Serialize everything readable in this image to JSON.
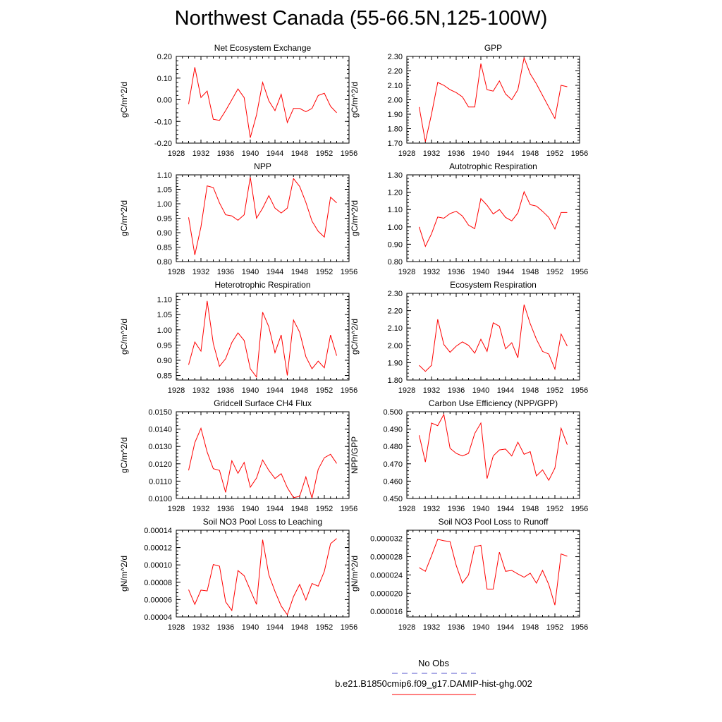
{
  "figure": {
    "title": "Northwest Canada (55-66.5N,125-100W)",
    "legend": [
      {
        "label": "No Obs",
        "color": "#5555cc",
        "dash": "dashed"
      },
      {
        "label": "b.e21.B1850cmip6.f09_g17.DAMIP-hist-ghg.002",
        "color": "#ff0000",
        "dash": "solid"
      }
    ]
  },
  "chart_data": [
    {
      "type": "line",
      "title": "Net Ecosystem Exchange",
      "xlabel": "",
      "ylabel": "gC/m^2/d",
      "xlim": [
        1928,
        1956
      ],
      "ylim": [
        -0.2,
        0.2
      ],
      "x_ticks": [
        "1928",
        "1932",
        "1936",
        "1940",
        "1944",
        "1948",
        "1952",
        "1956"
      ],
      "y_ticks": [
        "-0.20",
        "-0.10",
        "0.00",
        "0.10",
        "0.20"
      ],
      "series": [
        {
          "color": "#ff0000",
          "x": [
            1930,
            1931,
            1932,
            1933,
            1934,
            1935,
            1936,
            1937,
            1938,
            1939,
            1940,
            1941,
            1942,
            1943,
            1944,
            1945,
            1946,
            1947,
            1948,
            1949,
            1950,
            1951,
            1952,
            1953,
            1954
          ],
          "values": [
            -0.02,
            0.15,
            0.01,
            0.04,
            -0.09,
            -0.095,
            -0.05,
            0.0,
            0.05,
            0.01,
            -0.175,
            -0.07,
            0.08,
            -0.005,
            -0.05,
            0.025,
            -0.105,
            -0.04,
            -0.04,
            -0.055,
            -0.04,
            0.02,
            0.03,
            -0.03,
            -0.06
          ]
        }
      ]
    },
    {
      "type": "line",
      "title": "GPP",
      "xlabel": "",
      "ylabel": "gC/m^2/d",
      "xlim": [
        1928,
        1956
      ],
      "ylim": [
        1.7,
        2.3
      ],
      "x_ticks": [
        "1928",
        "1932",
        "1936",
        "1940",
        "1944",
        "1948",
        "1952",
        "1956"
      ],
      "y_ticks": [
        "1.70",
        "1.80",
        "1.90",
        "2.00",
        "2.10",
        "2.20",
        "2.30"
      ],
      "series": [
        {
          "color": "#ff0000",
          "x": [
            1930,
            1931,
            1932,
            1933,
            1934,
            1935,
            1936,
            1937,
            1938,
            1939,
            1940,
            1941,
            1942,
            1943,
            1944,
            1945,
            1946,
            1947,
            1948,
            1949,
            1950,
            1951,
            1952,
            1953,
            1954
          ],
          "values": [
            1.95,
            1.71,
            1.9,
            2.12,
            2.1,
            2.07,
            2.05,
            2.02,
            1.95,
            1.95,
            2.25,
            2.07,
            2.06,
            2.13,
            2.04,
            2.0,
            2.07,
            2.29,
            2.18,
            2.11,
            2.03,
            1.95,
            1.87,
            2.1,
            2.09
          ]
        }
      ]
    },
    {
      "type": "line",
      "title": "NPP",
      "xlabel": "",
      "ylabel": "gC/m^2/d",
      "xlim": [
        1928,
        1956
      ],
      "ylim": [
        0.8,
        1.1
      ],
      "x_ticks": [
        "1928",
        "1932",
        "1936",
        "1940",
        "1944",
        "1948",
        "1952",
        "1956"
      ],
      "y_ticks": [
        "0.80",
        "0.85",
        "0.90",
        "0.95",
        "1.00",
        "1.05",
        "1.10"
      ],
      "series": [
        {
          "color": "#ff0000",
          "x": [
            1930,
            1931,
            1932,
            1933,
            1934,
            1935,
            1936,
            1937,
            1938,
            1939,
            1940,
            1941,
            1942,
            1943,
            1944,
            1945,
            1946,
            1947,
            1948,
            1949,
            1950,
            1951,
            1952,
            1953,
            1954
          ],
          "values": [
            0.953,
            0.823,
            0.92,
            1.062,
            1.056,
            1.003,
            0.962,
            0.958,
            0.943,
            0.962,
            1.092,
            0.95,
            0.985,
            1.028,
            0.985,
            0.968,
            0.985,
            1.087,
            1.06,
            1.005,
            0.94,
            0.905,
            0.885,
            1.023,
            1.003
          ]
        }
      ]
    },
    {
      "type": "line",
      "title": "Autotrophic Respiration",
      "xlabel": "",
      "ylabel": "gC/m^2/d",
      "xlim": [
        1928,
        1956
      ],
      "ylim": [
        0.8,
        1.3
      ],
      "x_ticks": [
        "1928",
        "1932",
        "1936",
        "1940",
        "1944",
        "1948",
        "1952",
        "1956"
      ],
      "y_ticks": [
        "0.80",
        "0.90",
        "1.00",
        "1.10",
        "1.20",
        "1.30"
      ],
      "series": [
        {
          "color": "#ff0000",
          "x": [
            1930,
            1931,
            1932,
            1933,
            1934,
            1935,
            1936,
            1937,
            1938,
            1939,
            1940,
            1941,
            1942,
            1943,
            1944,
            1945,
            1946,
            1947,
            1948,
            1949,
            1950,
            1951,
            1952,
            1953,
            1954
          ],
          "values": [
            1.0,
            0.888,
            0.96,
            1.057,
            1.05,
            1.077,
            1.09,
            1.063,
            1.01,
            0.99,
            1.163,
            1.125,
            1.075,
            1.1,
            1.055,
            1.035,
            1.08,
            1.203,
            1.128,
            1.12,
            1.09,
            1.055,
            0.988,
            1.083,
            1.083
          ]
        }
      ]
    },
    {
      "type": "line",
      "title": "Heterotrophic Respiration",
      "xlabel": "",
      "ylabel": "gC/m^2/d",
      "xlim": [
        1928,
        1956
      ],
      "ylim": [
        0.835,
        1.12
      ],
      "x_ticks": [
        "1928",
        "1932",
        "1936",
        "1940",
        "1944",
        "1948",
        "1952",
        "1956"
      ],
      "y_ticks": [
        "0.85",
        "0.90",
        "0.95",
        "1.00",
        "1.05",
        "1.10"
      ],
      "series": [
        {
          "color": "#ff0000",
          "x": [
            1930,
            1931,
            1932,
            1933,
            1934,
            1935,
            1936,
            1937,
            1938,
            1939,
            1940,
            1941,
            1942,
            1943,
            1944,
            1945,
            1946,
            1947,
            1948,
            1949,
            1950,
            1951,
            1952,
            1953,
            1954
          ],
          "values": [
            0.885,
            0.96,
            0.93,
            1.095,
            0.955,
            0.88,
            0.905,
            0.958,
            0.99,
            0.965,
            0.872,
            0.845,
            1.058,
            1.01,
            0.925,
            0.983,
            0.85,
            1.032,
            0.992,
            0.912,
            0.872,
            0.897,
            0.875,
            0.983,
            0.915
          ]
        }
      ]
    },
    {
      "type": "line",
      "title": "Ecosystem Respiration",
      "xlabel": "",
      "ylabel": "gC/m^2/d",
      "xlim": [
        1928,
        1956
      ],
      "ylim": [
        1.8,
        2.3
      ],
      "x_ticks": [
        "1928",
        "1932",
        "1936",
        "1940",
        "1944",
        "1948",
        "1952",
        "1956"
      ],
      "y_ticks": [
        "1.80",
        "1.90",
        "2.00",
        "2.10",
        "2.20",
        "2.30"
      ],
      "series": [
        {
          "color": "#ff0000",
          "x": [
            1930,
            1931,
            1932,
            1933,
            1934,
            1935,
            1936,
            1937,
            1938,
            1939,
            1940,
            1941,
            1942,
            1943,
            1944,
            1945,
            1946,
            1947,
            1948,
            1949,
            1950,
            1951,
            1952,
            1953,
            1954
          ],
          "values": [
            1.885,
            1.85,
            1.885,
            2.15,
            2.005,
            1.96,
            1.995,
            2.02,
            2.0,
            1.955,
            2.035,
            1.965,
            2.13,
            2.11,
            1.98,
            2.015,
            1.928,
            2.235,
            2.125,
            2.035,
            1.965,
            1.95,
            1.863,
            2.065,
            1.995
          ]
        }
      ]
    },
    {
      "type": "line",
      "title": "Gridcell Surface CH4 Flux",
      "xlabel": "",
      "ylabel": "gC/m^2/d",
      "xlim": [
        1928,
        1956
      ],
      "ylim": [
        0.01,
        0.015
      ],
      "x_ticks": [
        "1928",
        "1932",
        "1936",
        "1940",
        "1944",
        "1948",
        "1952",
        "1956"
      ],
      "y_ticks": [
        "0.0100",
        "0.0110",
        "0.0120",
        "0.0130",
        "0.0140",
        "0.0150"
      ],
      "series": [
        {
          "color": "#ff0000",
          "x": [
            1930,
            1931,
            1932,
            1933,
            1934,
            1935,
            1936,
            1937,
            1938,
            1939,
            1940,
            1941,
            1942,
            1943,
            1944,
            1945,
            1946,
            1947,
            1948,
            1949,
            1950,
            1951,
            1952,
            1953,
            1954
          ],
          "values": [
            0.01162,
            0.01322,
            0.01405,
            0.01268,
            0.01172,
            0.01162,
            0.01035,
            0.01218,
            0.01145,
            0.01208,
            0.01065,
            0.01118,
            0.01222,
            0.01162,
            0.01115,
            0.01143,
            0.01062,
            0.01005,
            0.01012,
            0.01125,
            0.01002,
            0.01168,
            0.01235,
            0.01255,
            0.01202
          ]
        }
      ]
    },
    {
      "type": "line",
      "title": "Carbon Use Efficiency (NPP/GPP)",
      "xlabel": "",
      "ylabel": "NPP/GPP",
      "xlim": [
        1928,
        1956
      ],
      "ylim": [
        0.45,
        0.5
      ],
      "x_ticks": [
        "1928",
        "1932",
        "1936",
        "1940",
        "1944",
        "1948",
        "1952",
        "1956"
      ],
      "y_ticks": [
        "0.450",
        "0.460",
        "0.470",
        "0.480",
        "0.490",
        "0.500"
      ],
      "series": [
        {
          "color": "#ff0000",
          "x": [
            1930,
            1931,
            1932,
            1933,
            1934,
            1935,
            1936,
            1937,
            1938,
            1939,
            1940,
            1941,
            1942,
            1943,
            1944,
            1945,
            1946,
            1947,
            1948,
            1949,
            1950,
            1951,
            1952,
            1953,
            1954
          ],
          "values": [
            0.4865,
            0.471,
            0.4935,
            0.492,
            0.4985,
            0.479,
            0.476,
            0.4745,
            0.476,
            0.4875,
            0.4935,
            0.4615,
            0.4745,
            0.478,
            0.4785,
            0.4745,
            0.4825,
            0.4755,
            0.477,
            0.463,
            0.4665,
            0.4605,
            0.4675,
            0.4905,
            0.481
          ]
        }
      ]
    },
    {
      "type": "line",
      "title": "Soil NO3 Pool Loss to Leaching",
      "xlabel": "",
      "ylabel": "gN/m^2/d",
      "xlim": [
        1928,
        1956
      ],
      "ylim": [
        4e-05,
        0.00014
      ],
      "x_ticks": [
        "1928",
        "1932",
        "1936",
        "1940",
        "1944",
        "1948",
        "1952",
        "1956"
      ],
      "y_ticks": [
        "0.00004",
        "0.00006",
        "0.00008",
        "0.00010",
        "0.00012",
        "0.00014"
      ],
      "series": [
        {
          "color": "#ff0000",
          "x": [
            1930,
            1931,
            1932,
            1933,
            1934,
            1935,
            1936,
            1937,
            1938,
            1939,
            1940,
            1941,
            1942,
            1943,
            1944,
            1945,
            1946,
            1947,
            1948,
            1949,
            1950,
            1951,
            1952,
            1953,
            1954
          ],
          "values": [
            7.15e-05,
            5.45e-05,
            7.1e-05,
            7e-05,
            0.0001005,
            9.85e-05,
            5.75e-05,
            4.75e-05,
            9.35e-05,
            8.75e-05,
            7.1e-05,
            5.45e-05,
            0.000129,
            8.85e-05,
            6.95e-05,
            5.25e-05,
            4.25e-05,
            6.35e-05,
            7.75e-05,
            5.95e-05,
            7.85e-05,
            7.55e-05,
            9.25e-05,
            0.0001245,
            0.0001305
          ]
        }
      ]
    },
    {
      "type": "line",
      "title": "Soil NO3 Pool Loss to Runoff",
      "xlabel": "",
      "ylabel": "gN/m^2/d",
      "xlim": [
        1928,
        1956
      ],
      "ylim": [
        1.48e-05,
        3.38e-05
      ],
      "x_ticks": [
        "1928",
        "1932",
        "1936",
        "1940",
        "1944",
        "1948",
        "1952",
        "1956"
      ],
      "y_ticks": [
        "0.000016",
        "0.000020",
        "0.000024",
        "0.000028",
        "0.000032"
      ],
      "series": [
        {
          "color": "#ff0000",
          "x": [
            1930,
            1931,
            1932,
            1933,
            1934,
            1935,
            1936,
            1937,
            1938,
            1939,
            1940,
            1941,
            1942,
            1943,
            1944,
            1945,
            1946,
            1947,
            1948,
            1949,
            1950,
            1951,
            1952,
            1953,
            1954
          ],
          "values": [
            2.56e-05,
            2.48e-05,
            2.82e-05,
            3.18e-05,
            3.15e-05,
            3.13e-05,
            2.61e-05,
            2.22e-05,
            2.4e-05,
            3.02e-05,
            3.05e-05,
            2.09e-05,
            2.09e-05,
            2.9e-05,
            2.48e-05,
            2.5e-05,
            2.42e-05,
            2.35e-05,
            2.44e-05,
            2.22e-05,
            2.5e-05,
            2.19e-05,
            1.74e-05,
            2.86e-05,
            2.81e-05
          ]
        }
      ]
    }
  ]
}
